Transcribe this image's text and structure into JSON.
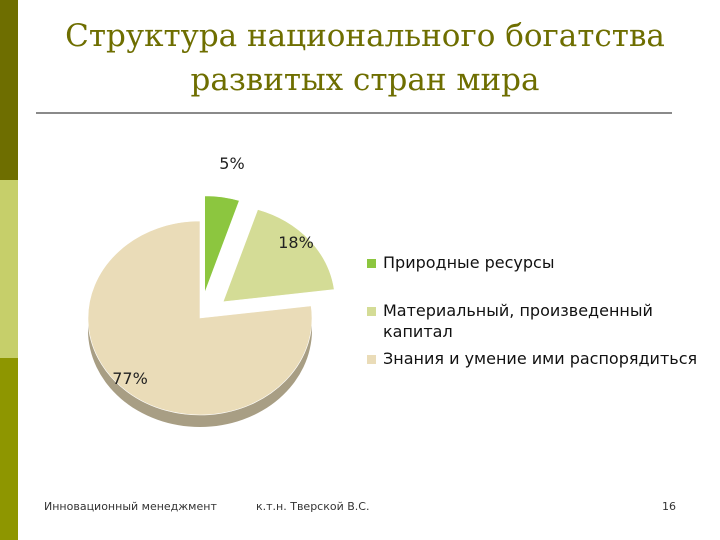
{
  "slide": {
    "title_line1": "Структура национального богатства",
    "title_line2": "развитых стран мира"
  },
  "footer": {
    "left": "Инновационный менеджмент",
    "center": "к.т.н. Тверской В.С.",
    "page": "16"
  },
  "chart_data": {
    "type": "pie",
    "title": "",
    "legend_position": "right",
    "slices": [
      {
        "label": "Природные ресурсы",
        "value": 5,
        "display": "5%",
        "color": "#8cc63f"
      },
      {
        "label": "Материальный, произведенный капитал",
        "value": 18,
        "display": "18%",
        "color": "#d4dc96"
      },
      {
        "label": "Знания и умение ими распорядиться",
        "value": 77,
        "display": "77%",
        "color": "#eadcb8"
      }
    ]
  }
}
